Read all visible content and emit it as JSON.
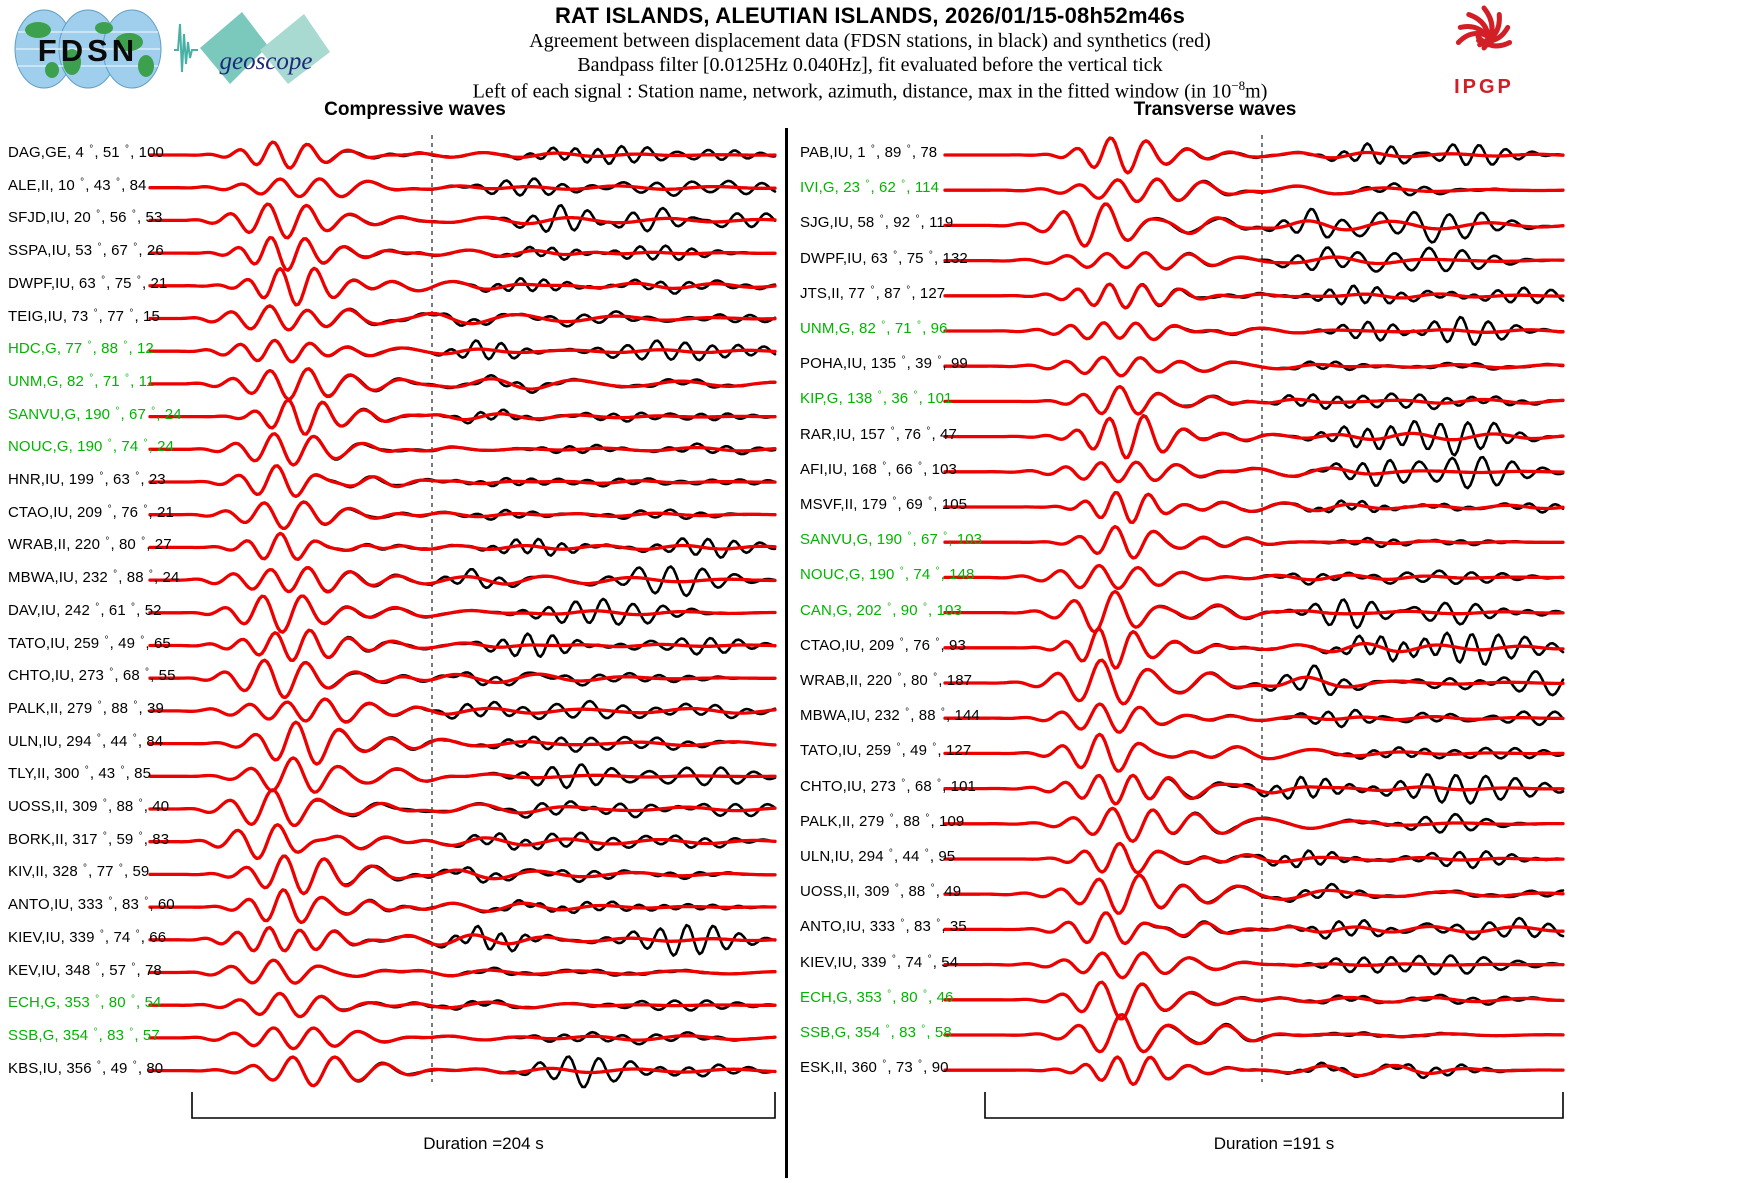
{
  "header": {
    "title": "RAT ISLANDS, ALEUTIAN ISLANDS, 2026/01/15-08h52m46s",
    "subtitle1": "Agreement between displacement data (FDSN stations, in black) and synthetics (red)",
    "subtitle2": "Bandpass filter [0.0125Hz 0.040Hz], fit evaluated before the vertical tick",
    "subtitle3_prefix": "Left of each signal : Station name, network, azimuth, distance, max in the fitted window (in 10",
    "subtitle3_sup": "−8",
    "subtitle3_suffix": "m)",
    "logos": {
      "fdsn": "FDSN",
      "geoscope": "geoscope",
      "ipgp": "IPGP"
    }
  },
  "colors": {
    "trace_red": "#ec0000",
    "trace_black": "#000000",
    "station_green": "#00b400",
    "ipgp_red": "#d21f26"
  },
  "chart_data": {
    "type": "line",
    "degree_symbol": "°",
    "legend": {
      "black": "displacement data (FDSN stations)",
      "red": "synthetics"
    },
    "panels": [
      {
        "title": "Compressive waves",
        "duration_label": "Duration =204 s",
        "duration_s": 204,
        "stations": [
          {
            "name": "DAG",
            "network": "GE",
            "azimuth": 4,
            "distance": 51,
            "max": 100,
            "highlight": false
          },
          {
            "name": "ALE",
            "network": "II",
            "azimuth": 10,
            "distance": 43,
            "max": 84,
            "highlight": false
          },
          {
            "name": "SFJD",
            "network": "IU",
            "azimuth": 20,
            "distance": 56,
            "max": 53,
            "highlight": false
          },
          {
            "name": "SSPA",
            "network": "IU",
            "azimuth": 53,
            "distance": 67,
            "max": 26,
            "highlight": false
          },
          {
            "name": "DWPF",
            "network": "IU",
            "azimuth": 63,
            "distance": 75,
            "max": 21,
            "highlight": false
          },
          {
            "name": "TEIG",
            "network": "IU",
            "azimuth": 73,
            "distance": 77,
            "max": 15,
            "highlight": false
          },
          {
            "name": "HDC",
            "network": "G",
            "azimuth": 77,
            "distance": 88,
            "max": 12,
            "highlight": true
          },
          {
            "name": "UNM",
            "network": "G",
            "azimuth": 82,
            "distance": 71,
            "max": 11,
            "highlight": true
          },
          {
            "name": "SANVU",
            "network": "G",
            "azimuth": 190,
            "distance": 67,
            "max": 24,
            "highlight": true
          },
          {
            "name": "NOUC",
            "network": "G",
            "azimuth": 190,
            "distance": 74,
            "max": 24,
            "highlight": true
          },
          {
            "name": "HNR",
            "network": "IU",
            "azimuth": 199,
            "distance": 63,
            "max": 23,
            "highlight": false
          },
          {
            "name": "CTAO",
            "network": "IU",
            "azimuth": 209,
            "distance": 76,
            "max": 21,
            "highlight": false
          },
          {
            "name": "WRAB",
            "network": "II",
            "azimuth": 220,
            "distance": 80,
            "max": 27,
            "highlight": false
          },
          {
            "name": "MBWA",
            "network": "IU",
            "azimuth": 232,
            "distance": 88,
            "max": 24,
            "highlight": false
          },
          {
            "name": "DAV",
            "network": "IU",
            "azimuth": 242,
            "distance": 61,
            "max": 52,
            "highlight": false
          },
          {
            "name": "TATO",
            "network": "IU",
            "azimuth": 259,
            "distance": 49,
            "max": 65,
            "highlight": false
          },
          {
            "name": "CHTO",
            "network": "IU",
            "azimuth": 273,
            "distance": 68,
            "max": 55,
            "highlight": false
          },
          {
            "name": "PALK",
            "network": "II",
            "azimuth": 279,
            "distance": 88,
            "max": 39,
            "highlight": false
          },
          {
            "name": "ULN",
            "network": "IU",
            "azimuth": 294,
            "distance": 44,
            "max": 84,
            "highlight": false
          },
          {
            "name": "TLY",
            "network": "II",
            "azimuth": 300,
            "distance": 43,
            "max": 85,
            "highlight": false
          },
          {
            "name": "UOSS",
            "network": "II",
            "azimuth": 309,
            "distance": 88,
            "max": 40,
            "highlight": false
          },
          {
            "name": "BORK",
            "network": "II",
            "azimuth": 317,
            "distance": 59,
            "max": 83,
            "highlight": false
          },
          {
            "name": "KIV",
            "network": "II",
            "azimuth": 328,
            "distance": 77,
            "max": 59,
            "highlight": false
          },
          {
            "name": "ANTO",
            "network": "IU",
            "azimuth": 333,
            "distance": 83,
            "max": 60,
            "highlight": false
          },
          {
            "name": "KIEV",
            "network": "IU",
            "azimuth": 339,
            "distance": 74,
            "max": 66,
            "highlight": false
          },
          {
            "name": "KEV",
            "network": "IU",
            "azimuth": 348,
            "distance": 57,
            "max": 78,
            "highlight": false
          },
          {
            "name": "ECH",
            "network": "G",
            "azimuth": 353,
            "distance": 80,
            "max": 54,
            "highlight": true
          },
          {
            "name": "SSB",
            "network": "G",
            "azimuth": 354,
            "distance": 83,
            "max": 57,
            "highlight": true
          },
          {
            "name": "KBS",
            "network": "IU",
            "azimuth": 356,
            "distance": 49,
            "max": 80,
            "highlight": false
          }
        ]
      },
      {
        "title": "Transverse waves",
        "duration_label": "Duration =191 s",
        "duration_s": 191,
        "stations": [
          {
            "name": "PAB",
            "network": "IU",
            "azimuth": 1,
            "distance": 89,
            "max": 78,
            "highlight": false
          },
          {
            "name": "IVI",
            "network": "G",
            "azimuth": 23,
            "distance": 62,
            "max": 114,
            "highlight": true
          },
          {
            "name": "SJG",
            "network": "IU",
            "azimuth": 58,
            "distance": 92,
            "max": 119,
            "highlight": false
          },
          {
            "name": "DWPF",
            "network": "IU",
            "azimuth": 63,
            "distance": 75,
            "max": 132,
            "highlight": false
          },
          {
            "name": "JTS",
            "network": "II",
            "azimuth": 77,
            "distance": 87,
            "max": 127,
            "highlight": false
          },
          {
            "name": "UNM",
            "network": "G",
            "azimuth": 82,
            "distance": 71,
            "max": 96,
            "highlight": true
          },
          {
            "name": "POHA",
            "network": "IU",
            "azimuth": 135,
            "distance": 39,
            "max": 99,
            "highlight": false
          },
          {
            "name": "KIP",
            "network": "G",
            "azimuth": 138,
            "distance": 36,
            "max": 101,
            "highlight": true
          },
          {
            "name": "RAR",
            "network": "IU",
            "azimuth": 157,
            "distance": 76,
            "max": 47,
            "highlight": false
          },
          {
            "name": "AFI",
            "network": "IU",
            "azimuth": 168,
            "distance": 66,
            "max": 103,
            "highlight": false
          },
          {
            "name": "MSVF",
            "network": "II",
            "azimuth": 179,
            "distance": 69,
            "max": 105,
            "highlight": false
          },
          {
            "name": "SANVU",
            "network": "G",
            "azimuth": 190,
            "distance": 67,
            "max": 103,
            "highlight": true
          },
          {
            "name": "NOUC",
            "network": "G",
            "azimuth": 190,
            "distance": 74,
            "max": 148,
            "highlight": true
          },
          {
            "name": "CAN",
            "network": "G",
            "azimuth": 202,
            "distance": 90,
            "max": 103,
            "highlight": true
          },
          {
            "name": "CTAO",
            "network": "IU",
            "azimuth": 209,
            "distance": 76,
            "max": 93,
            "highlight": false
          },
          {
            "name": "WRAB",
            "network": "II",
            "azimuth": 220,
            "distance": 80,
            "max": 187,
            "highlight": false
          },
          {
            "name": "MBWA",
            "network": "IU",
            "azimuth": 232,
            "distance": 88,
            "max": 144,
            "highlight": false
          },
          {
            "name": "TATO",
            "network": "IU",
            "azimuth": 259,
            "distance": 49,
            "max": 127,
            "highlight": false
          },
          {
            "name": "CHTO",
            "network": "IU",
            "azimuth": 273,
            "distance": 68,
            "max": 101,
            "highlight": false
          },
          {
            "name": "PALK",
            "network": "II",
            "azimuth": 279,
            "distance": 88,
            "max": 109,
            "highlight": false
          },
          {
            "name": "ULN",
            "network": "IU",
            "azimuth": 294,
            "distance": 44,
            "max": 95,
            "highlight": false
          },
          {
            "name": "UOSS",
            "network": "II",
            "azimuth": 309,
            "distance": 88,
            "max": 49,
            "highlight": false
          },
          {
            "name": "ANTO",
            "network": "IU",
            "azimuth": 333,
            "distance": 83,
            "max": 35,
            "highlight": false
          },
          {
            "name": "KIEV",
            "network": "IU",
            "azimuth": 339,
            "distance": 74,
            "max": 54,
            "highlight": false
          },
          {
            "name": "ECH",
            "network": "G",
            "azimuth": 353,
            "distance": 80,
            "max": 46,
            "highlight": true
          },
          {
            "name": "SSB",
            "network": "G",
            "azimuth": 354,
            "distance": 83,
            "max": 58,
            "highlight": true
          },
          {
            "name": "ESK",
            "network": "II",
            "azimuth": 360,
            "distance": 73,
            "max": 90,
            "highlight": false
          }
        ]
      }
    ]
  }
}
